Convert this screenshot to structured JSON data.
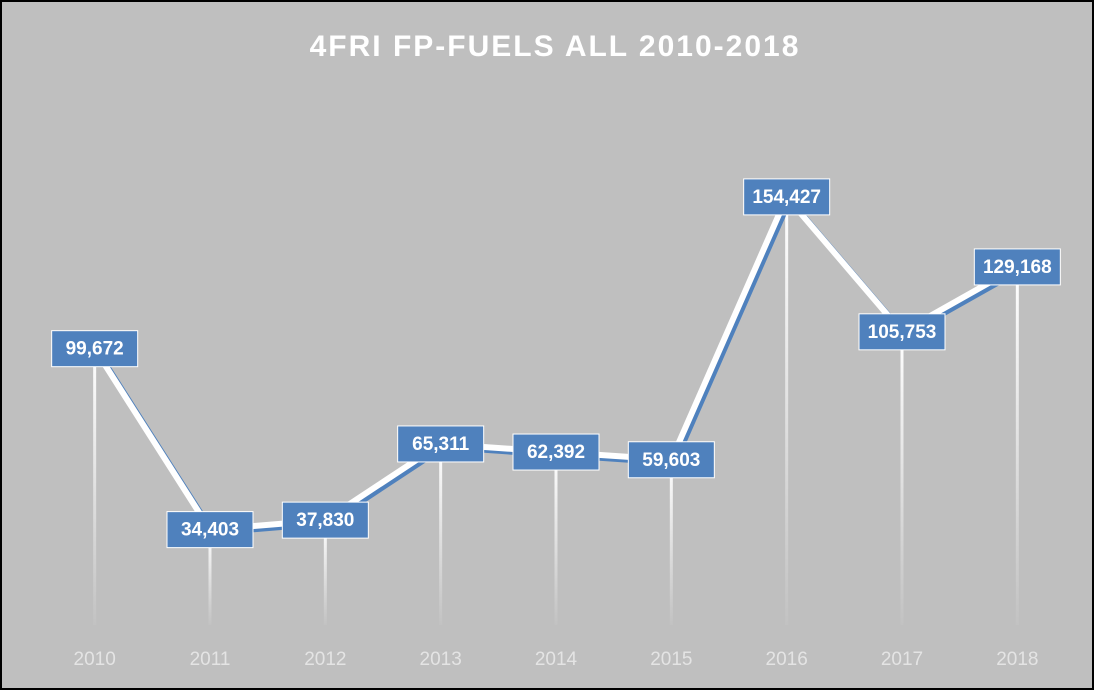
{
  "chart_data": {
    "type": "line",
    "title": "4FRI FP-FUELS ALL 2010-2018",
    "categories": [
      "2010",
      "2011",
      "2012",
      "2013",
      "2014",
      "2015",
      "2016",
      "2017",
      "2018"
    ],
    "values": [
      99672,
      34403,
      37830,
      65311,
      62392,
      59603,
      154427,
      105753,
      129168
    ],
    "value_labels": [
      "99,672",
      "34,403",
      "37,830",
      "65,311",
      "62,392",
      "59,603",
      "154,427",
      "105,753",
      "129,168"
    ],
    "color": "#4f81bd",
    "ylim": [
      0,
      180000
    ]
  }
}
